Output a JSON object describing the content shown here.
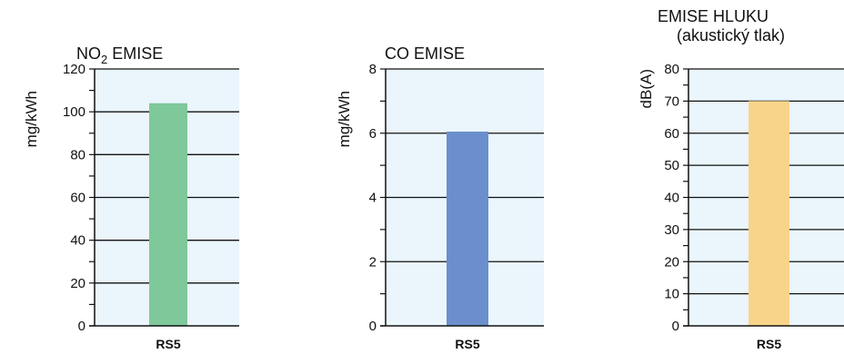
{
  "chart_data": [
    {
      "type": "bar",
      "title": "NO2 EMISE",
      "subtitle": "",
      "ylabel": "mg/kWh",
      "categories": [
        "RS5"
      ],
      "values": [
        104
      ],
      "ylim": [
        0,
        120
      ],
      "major_ticks": [
        "0",
        "20",
        "40",
        "60",
        "80",
        "100",
        "120"
      ],
      "minor_tick_step": 10,
      "bar_color": "#7ec89a",
      "plot_bg": "#eaf5fc",
      "grid": true
    },
    {
      "type": "bar",
      "title": "CO EMISE",
      "subtitle": "",
      "ylabel": "mg/kWh",
      "categories": [
        "RS5"
      ],
      "values": [
        6.05
      ],
      "ylim": [
        0,
        8
      ],
      "major_ticks": [
        "0",
        "2",
        "4",
        "6",
        "8"
      ],
      "minor_tick_step": 1,
      "bar_color": "#6b8fcd",
      "plot_bg": "#eaf5fc",
      "grid": true
    },
    {
      "type": "bar",
      "title": "EMISE HLUKU",
      "subtitle": "(akustický tlak)",
      "ylabel": "dB(A)",
      "categories": [
        "RS5"
      ],
      "values": [
        70
      ],
      "ylim": [
        0,
        80
      ],
      "major_ticks": [
        "0",
        "10",
        "20",
        "30",
        "40",
        "50",
        "60",
        "70",
        "80"
      ],
      "minor_tick_step": 5,
      "bar_color": "#f7d48a",
      "plot_bg": "#eaf5fc",
      "grid": true
    }
  ]
}
